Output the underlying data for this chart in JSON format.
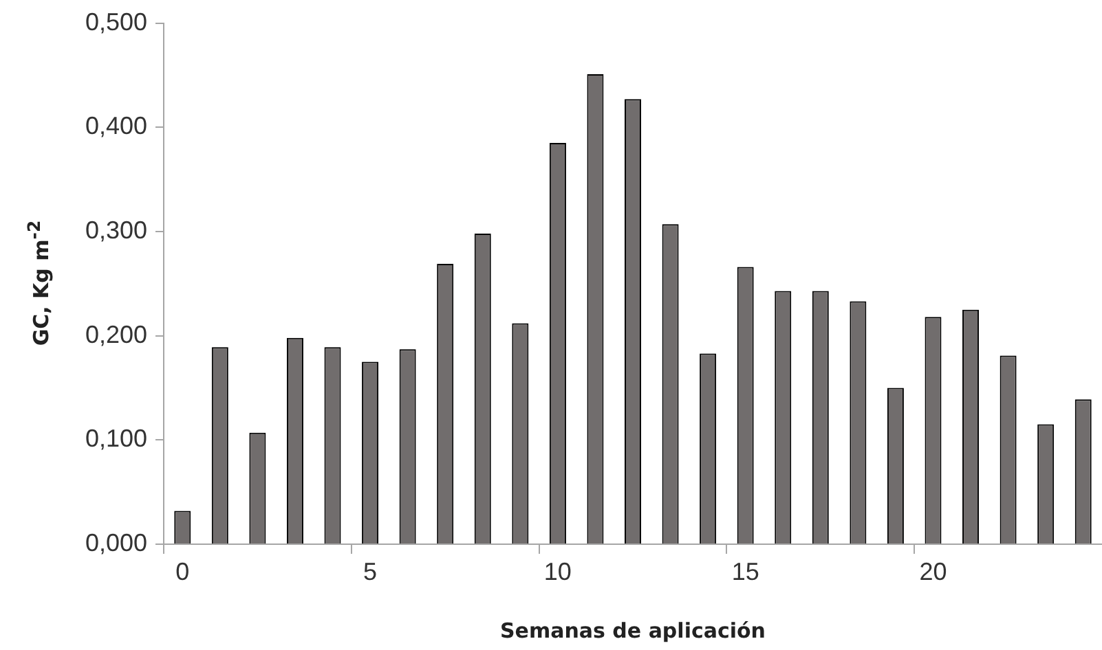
{
  "chart_data": {
    "type": "bar",
    "xlabel": "Semanas de aplicación",
    "ylabel": "GC, Kg m$^{-2}$",
    "categories": [
      "0",
      null,
      null,
      null,
      null,
      "5",
      null,
      null,
      null,
      null,
      "10",
      null,
      null,
      null,
      null,
      "15",
      null,
      null,
      null,
      null,
      "20",
      null,
      null,
      null,
      null
    ],
    "values": [
      0.032,
      0.189,
      0.107,
      0.198,
      0.189,
      0.175,
      0.187,
      0.269,
      0.298,
      0.212,
      0.385,
      0.451,
      0.427,
      0.307,
      0.183,
      0.266,
      0.243,
      0.243,
      0.233,
      0.15,
      0.218,
      0.225,
      0.181,
      0.115,
      0.139
    ],
    "color": "#716d6d",
    "ylim": [
      0,
      0.5
    ],
    "yticks": [
      {
        "value": 0,
        "label": "0,000"
      },
      {
        "value": 0.1,
        "label": "0,100"
      },
      {
        "value": 0.2,
        "label": "0,200"
      },
      {
        "value": 0.3,
        "label": "0,300"
      },
      {
        "value": 0.4,
        "label": "0,400"
      },
      {
        "value": 0.5,
        "label": "0,500"
      }
    ],
    "grid": false,
    "legend": false
  }
}
